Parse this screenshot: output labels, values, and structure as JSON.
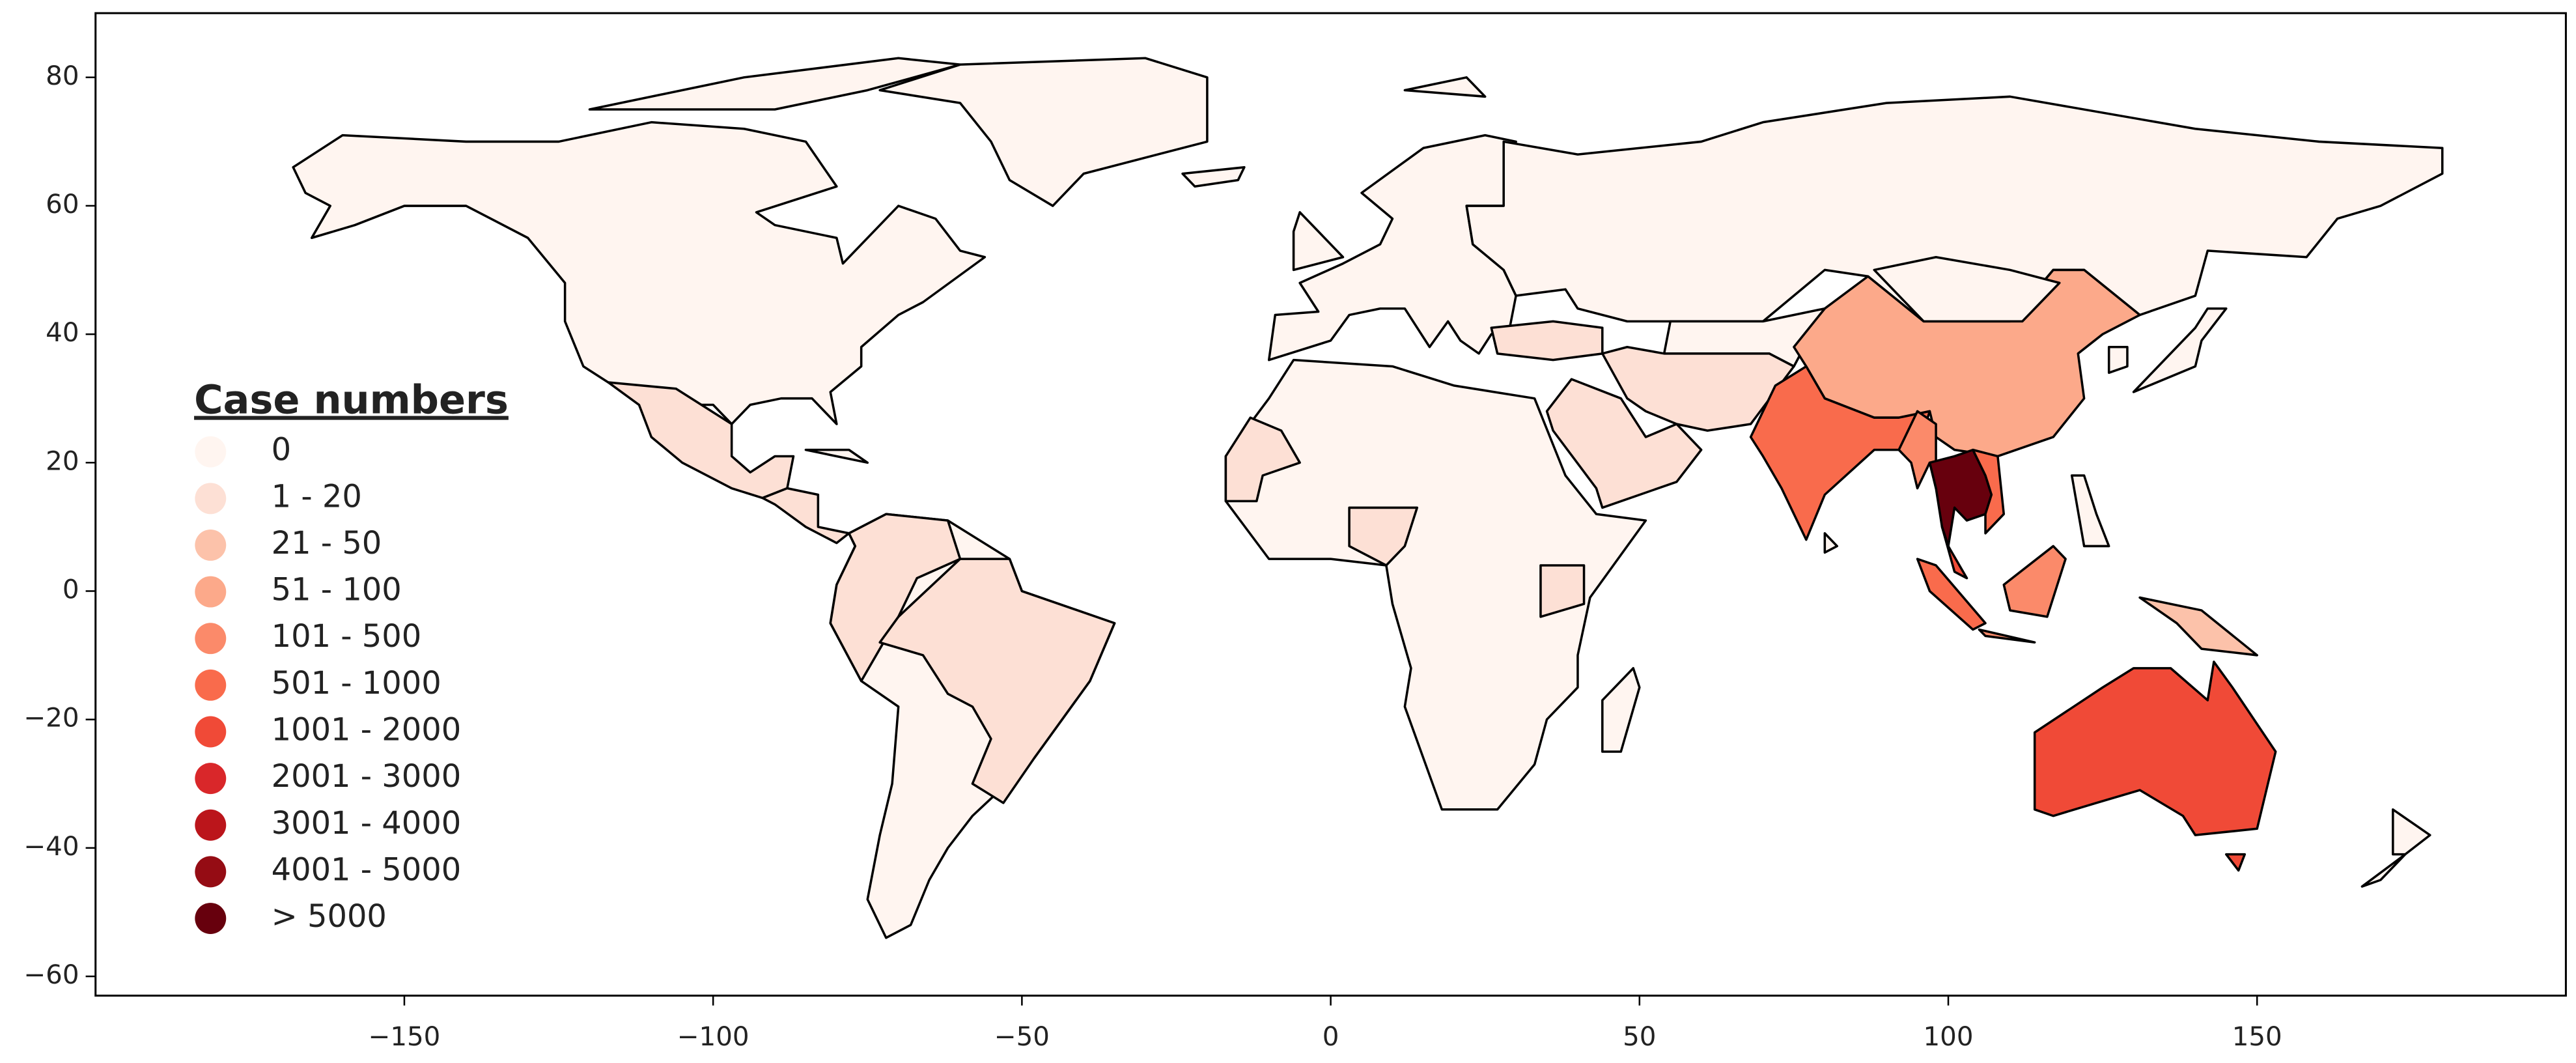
{
  "chart_data": {
    "type": "choropleth",
    "xlim": [
      -200,
      200
    ],
    "ylim": [
      -63,
      90
    ],
    "xticks": [
      {
        "value": -150,
        "label": "−150"
      },
      {
        "value": -100,
        "label": "−100"
      },
      {
        "value": -50,
        "label": "−50"
      },
      0,
      50,
      100,
      150
    ],
    "yticks": [
      {
        "value": -60,
        "label": "−60"
      },
      {
        "value": -40,
        "label": "−40"
      },
      {
        "value": -20,
        "label": "−20"
      },
      0,
      20,
      40,
      60,
      80
    ],
    "legend": {
      "title": "Case numbers",
      "items": [
        {
          "label": "0",
          "color": "#fff5f0"
        },
        {
          "label": "1 - 20",
          "color": "#fde0d5"
        },
        {
          "label": "21 - 50",
          "color": "#fcc2aa"
        },
        {
          "label": "51 - 100",
          "color": "#fca98a"
        },
        {
          "label": "101 - 500",
          "color": "#fb8a6a"
        },
        {
          "label": "501 - 1000",
          "color": "#f96b4c"
        },
        {
          "label": "1001 - 2000",
          "color": "#f04a37"
        },
        {
          "label": "2001 - 3000",
          "color": "#d9272a"
        },
        {
          "label": "3001 - 4000",
          "color": "#bb151b"
        },
        {
          "label": "4001 - 5000",
          "color": "#950c14"
        },
        {
          "label": "> 5000",
          "color": "#67000d"
        }
      ]
    }
  }
}
